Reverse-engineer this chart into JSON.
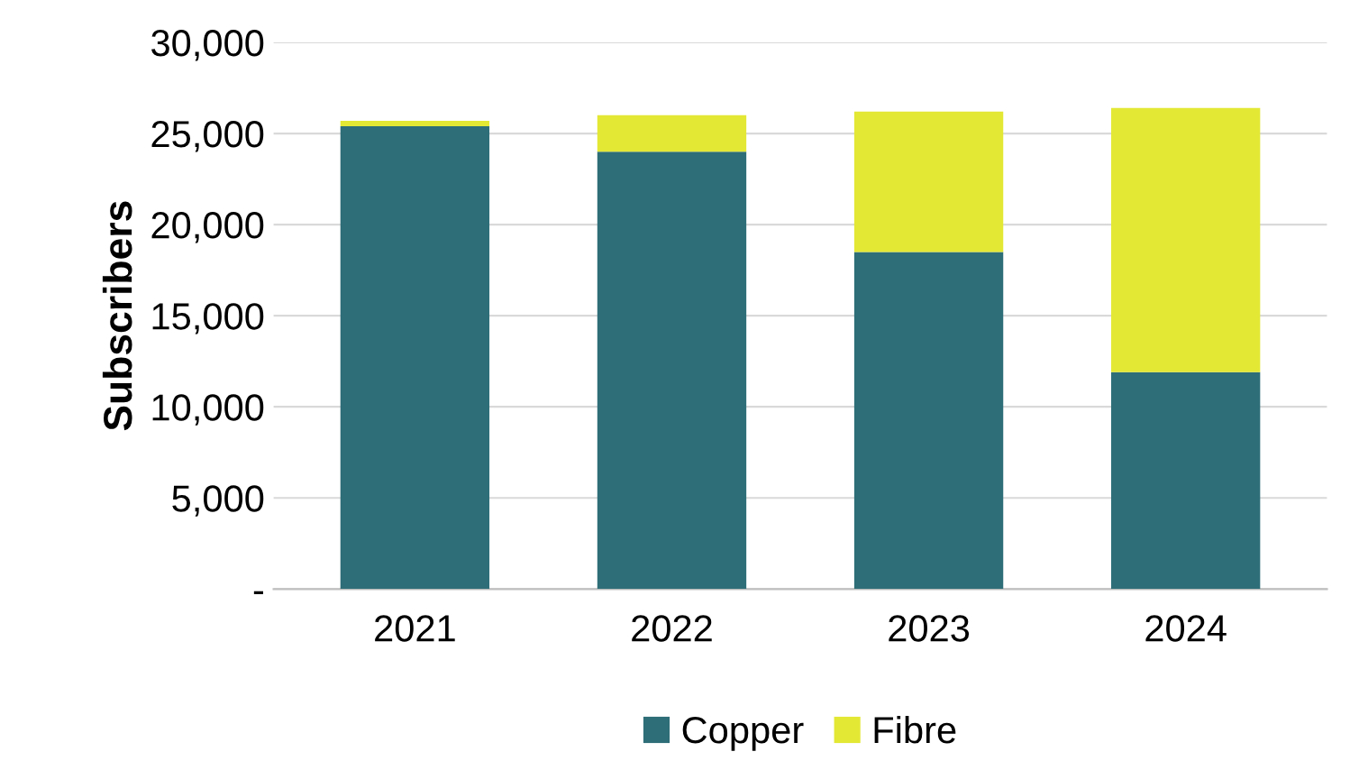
{
  "chart_data": {
    "type": "bar",
    "stacked": true,
    "ylabel": "Subscribers",
    "categories": [
      "2021",
      "2022",
      "2023",
      "2024"
    ],
    "series": [
      {
        "name": "Copper",
        "color": "#2e6e78",
        "values": [
          25400,
          24000,
          18500,
          11900
        ]
      },
      {
        "name": "Fibre",
        "color": "#e3e835",
        "values": [
          300,
          2000,
          7700,
          14500
        ]
      }
    ],
    "ylim": [
      0,
      30000
    ],
    "yticks": [
      {
        "value": 0,
        "label": "-"
      },
      {
        "value": 5000,
        "label": "5,000"
      },
      {
        "value": 10000,
        "label": "10,000"
      },
      {
        "value": 15000,
        "label": "15,000"
      },
      {
        "value": 20000,
        "label": "20,000"
      },
      {
        "value": 25000,
        "label": "25,000"
      },
      {
        "value": 30000,
        "label": "30,000"
      }
    ],
    "grid": "y",
    "legend": "bottom"
  }
}
